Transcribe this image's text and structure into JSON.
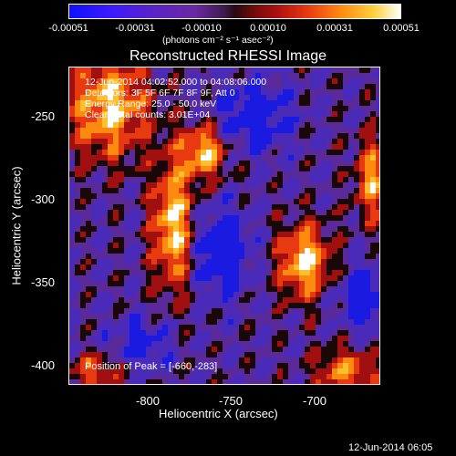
{
  "colorbar": {
    "ticks": [
      "-0.00051",
      "-0.00031",
      "-0.00010",
      "0.00010",
      "0.00031",
      "0.00051"
    ],
    "unit": "(photons cm⁻² s⁻¹ asec⁻²)",
    "colors": [
      "#1010ff",
      "#6a2aa0",
      "#2a0a10",
      "#b01010",
      "#ff8a10",
      "#ffffff"
    ]
  },
  "title": "Reconstructed RHESSI Image",
  "info": {
    "time": "12-Jun-2014 04:02:52.000 to 04:08:06.000",
    "detectors": "Detectors: 3F 5F 6F 7F 8F 9F, Att 0",
    "energy": "Energy Range: 25.0 - 50.0 keV",
    "method": "Clean     Total counts: 3.01E+04"
  },
  "peak_text": "Position of Peak = [-660,-283]",
  "axes": {
    "xlabel": "Heliocentric X (arcsec)",
    "ylabel": "Heliocentric Y (arcsec)",
    "xticks": [
      "-800",
      "-750",
      "-700"
    ],
    "yticks": [
      "-250",
      "-300",
      "-350",
      "-400"
    ]
  },
  "footer": "12-Jun-2014 06:05"
}
